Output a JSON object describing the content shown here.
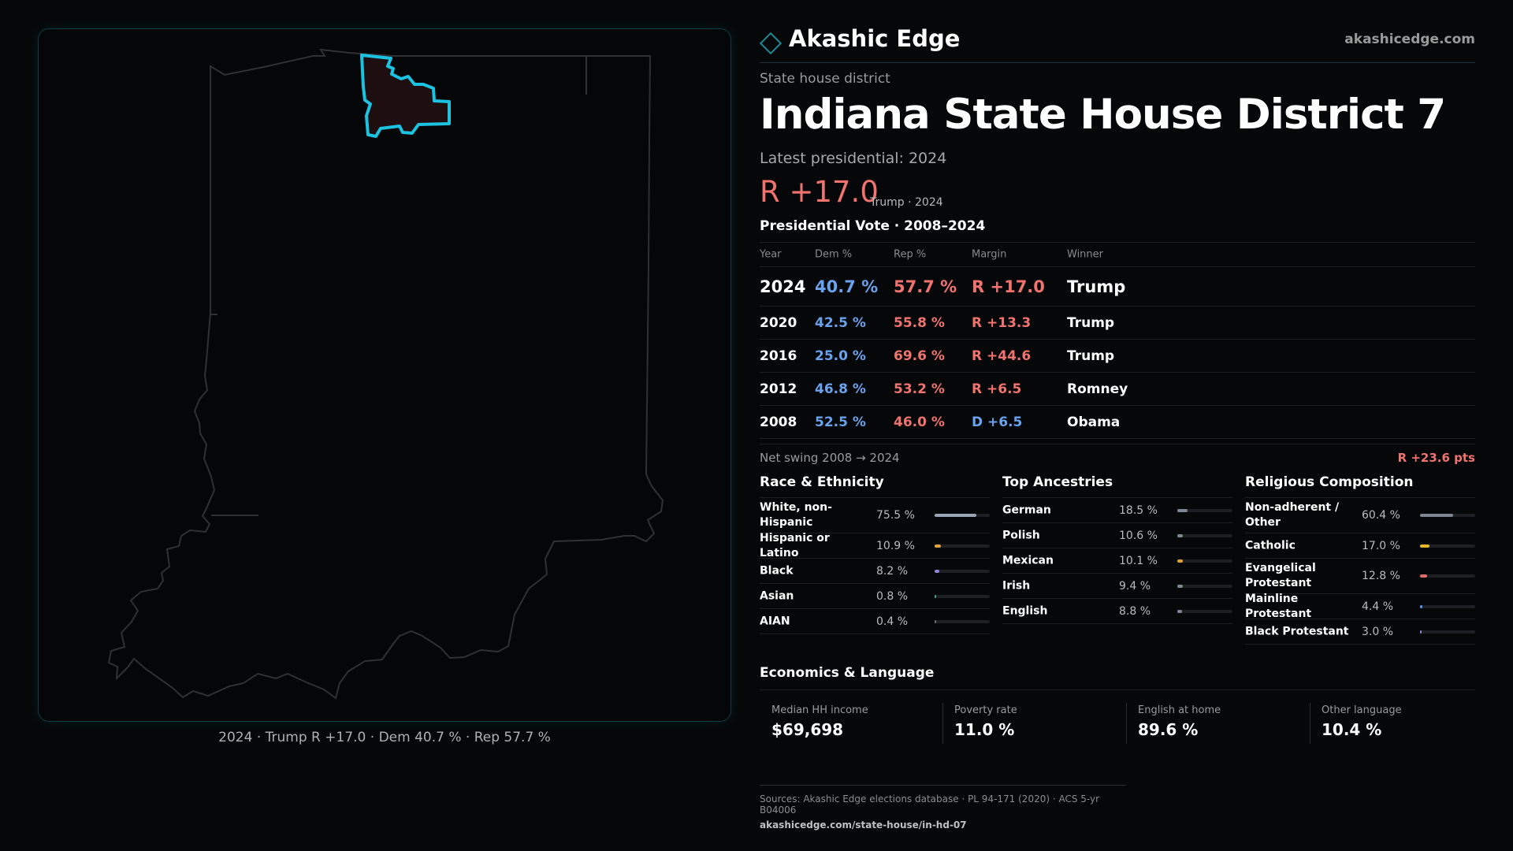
{
  "brand": {
    "name": "Akashic Edge",
    "url": "akashicedge.com",
    "accent": "#1d8a95"
  },
  "header": {
    "kicker": "State house district",
    "title": "Indiana State House District 7",
    "latest": "Latest presidential: 2024",
    "margin": "R +17.0",
    "margin_sub": "Trump · 2024"
  },
  "map": {
    "caption": "2024 · Trump R +17.0 · Dem 40.7 % · Rep 57.7 %",
    "highlight_color": "#1bc3e0"
  },
  "vote": {
    "title": "Presidential Vote · 2008–2024",
    "headers": {
      "year": "Year",
      "dem": "Dem %",
      "rep": "Rep %",
      "margin": "Margin",
      "winner": "Winner"
    },
    "rows": [
      {
        "year": "2024",
        "dem": "40.7 %",
        "rep": "57.7 %",
        "margin": "R +17.0",
        "winner": "Trump"
      },
      {
        "year": "2020",
        "dem": "42.5 %",
        "rep": "55.8 %",
        "margin": "R +13.3",
        "winner": "Trump"
      },
      {
        "year": "2016",
        "dem": "25.0 %",
        "rep": "69.6 %",
        "margin": "R +44.6",
        "winner": "Trump"
      },
      {
        "year": "2012",
        "dem": "46.8 %",
        "rep": "53.2 %",
        "margin": "R +6.5",
        "winner": "Romney"
      },
      {
        "year": "2008",
        "dem": "52.5 %",
        "rep": "46.0 %",
        "margin": "D +6.5",
        "winner": "Obama"
      }
    ],
    "swing_label": "Net swing 2008 → 2024",
    "swing_value": "R +23.6 pts"
  },
  "race": {
    "title": "Race & Ethnicity",
    "items": [
      {
        "label": "White, non-Hispanic",
        "pct": "75.5 %",
        "value": 75.5,
        "color": "#9aa5b4"
      },
      {
        "label": "Hispanic or Latino",
        "pct": "10.9 %",
        "value": 10.9,
        "color": "#e0a23a"
      },
      {
        "label": "Black",
        "pct": "8.2 %",
        "value": 8.2,
        "color": "#8c86d8"
      },
      {
        "label": "Asian",
        "pct": "0.8 %",
        "value": 0.8,
        "color": "#3fa38f"
      },
      {
        "label": "AIAN",
        "pct": "0.4 %",
        "value": 0.4,
        "color": "#6e6e6e"
      }
    ]
  },
  "ancestry": {
    "title": "Top Ancestries",
    "items": [
      {
        "label": "German",
        "pct": "18.5 %",
        "value": 18.5,
        "color": "#7f8794"
      },
      {
        "label": "Polish",
        "pct": "10.6 %",
        "value": 10.6,
        "color": "#7f8794"
      },
      {
        "label": "Mexican",
        "pct": "10.1 %",
        "value": 10.1,
        "color": "#e0a23a"
      },
      {
        "label": "Irish",
        "pct": "9.4 %",
        "value": 9.4,
        "color": "#7f8794"
      },
      {
        "label": "English",
        "pct": "8.8 %",
        "value": 8.8,
        "color": "#7f8794"
      }
    ]
  },
  "religion": {
    "title": "Religious Composition",
    "items": [
      {
        "label": "Non-adherent / Other",
        "pct": "60.4 %",
        "value": 60.4,
        "color": "#7f8794"
      },
      {
        "label": "Catholic",
        "pct": "17.0 %",
        "value": 17.0,
        "color": "#e8b52e"
      },
      {
        "label": "Evangelical Protestant",
        "pct": "12.8 %",
        "value": 12.8,
        "color": "#e06c6c"
      },
      {
        "label": "Mainline Protestant",
        "pct": "4.4 %",
        "value": 4.4,
        "color": "#5b8fe0"
      },
      {
        "label": "Black Protestant",
        "pct": "3.0 %",
        "value": 3.0,
        "color": "#8c86d8"
      }
    ]
  },
  "economics": {
    "title": "Economics & Language",
    "cells": [
      {
        "label": "Median HH income",
        "value": "$69,698"
      },
      {
        "label": "Poverty rate",
        "value": "11.0 %"
      },
      {
        "label": "English at home",
        "value": "89.6 %"
      },
      {
        "label": "Other language",
        "value": "10.4 %"
      }
    ]
  },
  "sources": {
    "line": "Sources: Akashic Edge elections database · PL 94-171 (2020) · ACS 5-yr B04006",
    "url": "akashicedge.com/state-house/in-hd-07"
  }
}
